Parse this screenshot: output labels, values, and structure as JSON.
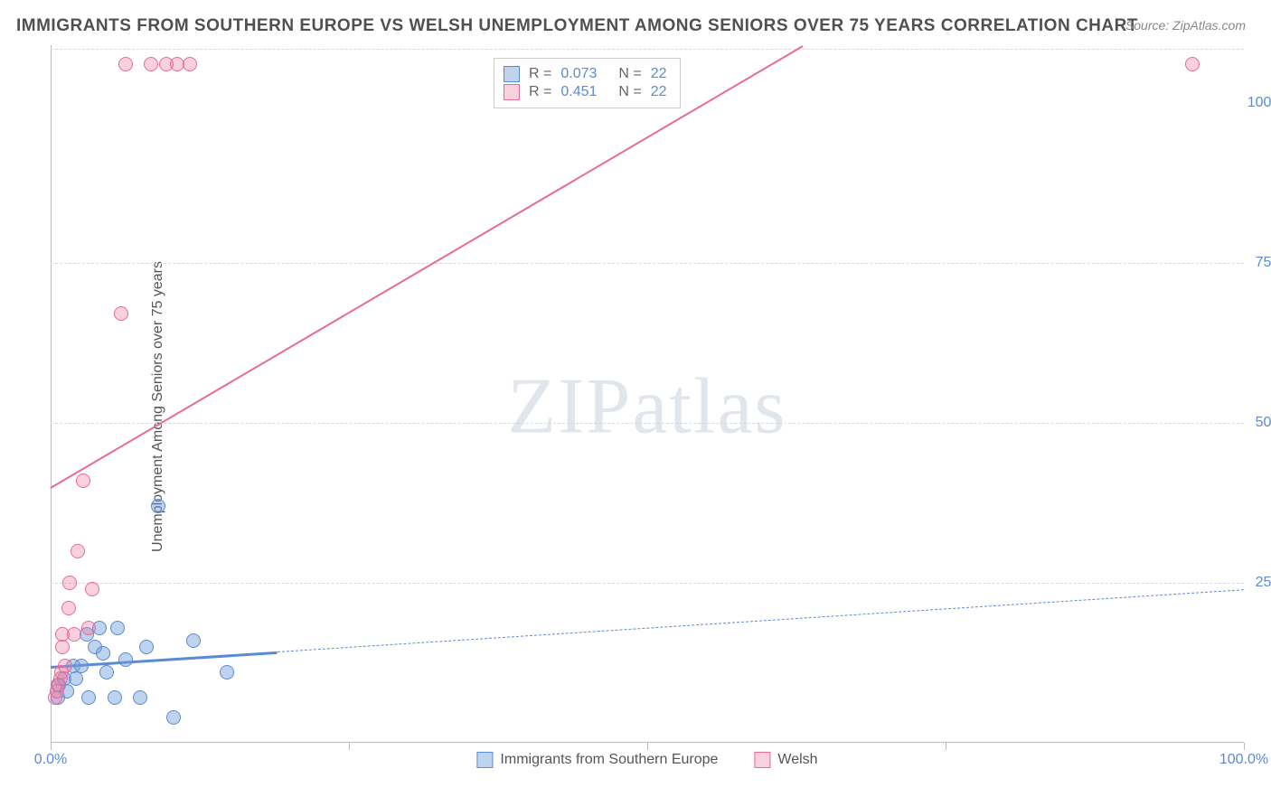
{
  "title": "IMMIGRANTS FROM SOUTHERN EUROPE VS WELSH UNEMPLOYMENT AMONG SENIORS OVER 75 YEARS CORRELATION CHART",
  "source": "Source: ZipAtlas.com",
  "y_axis_label": "Unemployment Among Seniors over 75 years",
  "watermark_a": "ZIP",
  "watermark_b": "atlas",
  "chart": {
    "type": "scatter",
    "xlim": [
      0,
      100
    ],
    "ylim": [
      0,
      109
    ],
    "x_ticks": [
      {
        "pos": 0,
        "label": "0.0%"
      },
      {
        "pos": 25,
        "label": ""
      },
      {
        "pos": 50,
        "label": ""
      },
      {
        "pos": 75,
        "label": ""
      },
      {
        "pos": 100,
        "label": "100.0%"
      }
    ],
    "y_ticks": [
      {
        "pos": 25,
        "label": "25.0%"
      },
      {
        "pos": 50,
        "label": "50.0%"
      },
      {
        "pos": 75,
        "label": "75.0%"
      },
      {
        "pos": 100,
        "label": "100.0%"
      }
    ],
    "grid_lines_y": [
      25,
      50,
      75,
      108.5
    ],
    "background_color": "#ffffff",
    "grid_color": "#d8d8d8",
    "marker_size": 16,
    "series": [
      {
        "name": "Immigrants from Southern Europe",
        "color_fill": "rgba(109,158,217,0.45)",
        "color_stroke": "#5b8bd4",
        "R": "0.073",
        "N": "22",
        "trend": {
          "x1": 0,
          "y1": 12,
          "x2": 100,
          "y2": 24,
          "solid_until_x": 19,
          "line_width_solid": 3,
          "line_width_dash": 1.5,
          "dash": "6,5"
        },
        "points": [
          {
            "x": 0.6,
            "y": 7
          },
          {
            "x": 0.7,
            "y": 9
          },
          {
            "x": 1.1,
            "y": 10
          },
          {
            "x": 1.4,
            "y": 8
          },
          {
            "x": 1.9,
            "y": 12
          },
          {
            "x": 2.1,
            "y": 10
          },
          {
            "x": 2.6,
            "y": 12
          },
          {
            "x": 3.0,
            "y": 17
          },
          {
            "x": 3.2,
            "y": 7
          },
          {
            "x": 3.7,
            "y": 15
          },
          {
            "x": 4.1,
            "y": 18
          },
          {
            "x": 4.4,
            "y": 14
          },
          {
            "x": 4.7,
            "y": 11
          },
          {
            "x": 5.4,
            "y": 7
          },
          {
            "x": 5.6,
            "y": 18
          },
          {
            "x": 6.3,
            "y": 13
          },
          {
            "x": 7.5,
            "y": 7
          },
          {
            "x": 8.0,
            "y": 15
          },
          {
            "x": 9.0,
            "y": 37
          },
          {
            "x": 10.3,
            "y": 4
          },
          {
            "x": 12.0,
            "y": 16
          },
          {
            "x": 14.8,
            "y": 11
          }
        ]
      },
      {
        "name": "Welsh",
        "color_fill": "rgba(236,120,160,0.35)",
        "color_stroke": "#e76a98",
        "R": "0.451",
        "N": "22",
        "trend": {
          "x1": 0,
          "y1": 40,
          "x2": 63,
          "y2": 109,
          "solid_until_x": 63,
          "line_width_solid": 2.5,
          "line_width_dash": 0,
          "dash": ""
        },
        "points": [
          {
            "x": 0.4,
            "y": 7
          },
          {
            "x": 0.5,
            "y": 8
          },
          {
            "x": 0.6,
            "y": 9
          },
          {
            "x": 0.8,
            "y": 10
          },
          {
            "x": 0.9,
            "y": 11
          },
          {
            "x": 1.0,
            "y": 15
          },
          {
            "x": 1.0,
            "y": 17
          },
          {
            "x": 1.2,
            "y": 12
          },
          {
            "x": 1.5,
            "y": 21
          },
          {
            "x": 1.6,
            "y": 25
          },
          {
            "x": 2.0,
            "y": 17
          },
          {
            "x": 2.3,
            "y": 30
          },
          {
            "x": 2.7,
            "y": 41
          },
          {
            "x": 3.2,
            "y": 18
          },
          {
            "x": 3.5,
            "y": 24
          },
          {
            "x": 5.9,
            "y": 67
          },
          {
            "x": 6.3,
            "y": 106
          },
          {
            "x": 8.4,
            "y": 106
          },
          {
            "x": 9.7,
            "y": 106
          },
          {
            "x": 10.6,
            "y": 106
          },
          {
            "x": 11.7,
            "y": 106
          },
          {
            "x": 95.7,
            "y": 106
          }
        ]
      }
    ]
  },
  "legend_box": {
    "r_label": "R =",
    "n_label": "N ="
  },
  "x_legend": [
    {
      "swatch_fill": "rgba(109,158,217,0.45)",
      "swatch_stroke": "#5b8bd4",
      "label": "Immigrants from Southern Europe"
    },
    {
      "swatch_fill": "rgba(236,120,160,0.35)",
      "swatch_stroke": "#e76a98",
      "label": "Welsh"
    }
  ]
}
